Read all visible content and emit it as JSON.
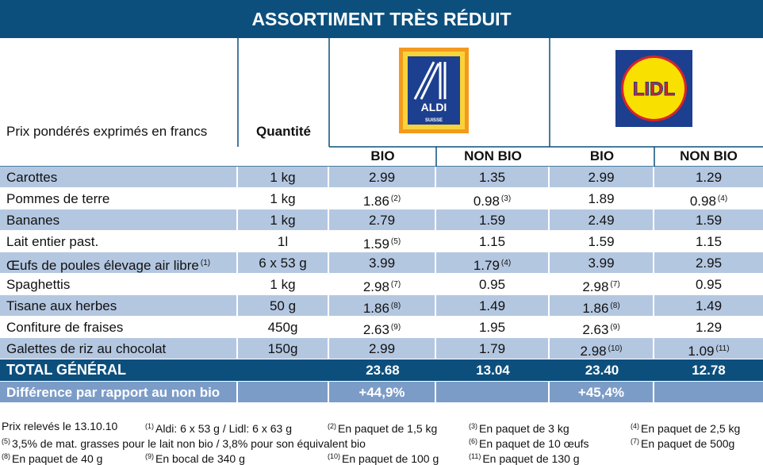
{
  "title": "ASSORTIMENT TRÈS RÉDUIT",
  "header": {
    "label": "Prix pondérés exprimés en francs",
    "quantity": "Quantité",
    "stores": [
      {
        "name": "ALDI",
        "sub": "SUISSE"
      },
      {
        "name": "LIDL"
      }
    ],
    "columns": [
      "BIO",
      "NON BIO",
      "BIO",
      "NON BIO"
    ]
  },
  "rows": [
    {
      "label": "Carottes",
      "quantity": "1 kg",
      "cells": [
        {
          "value": "2.99"
        },
        {
          "value": "1.35"
        },
        {
          "value": "2.99"
        },
        {
          "value": "1.29"
        }
      ]
    },
    {
      "label": "Pommes de terre",
      "quantity": "1 kg",
      "cells": [
        {
          "value": "1.86",
          "note": "(2)"
        },
        {
          "value": "0.98",
          "note": "(3)"
        },
        {
          "value": "1.89"
        },
        {
          "value": "0.98",
          "note": "(4)"
        }
      ]
    },
    {
      "label": "Bananes",
      "quantity": "1 kg",
      "cells": [
        {
          "value": "2.79"
        },
        {
          "value": "1.59"
        },
        {
          "value": "2.49"
        },
        {
          "value": "1.59"
        }
      ]
    },
    {
      "label": "Lait entier past.",
      "quantity": "1l",
      "cells": [
        {
          "value": "1.59",
          "note": "(5)"
        },
        {
          "value": "1.15"
        },
        {
          "value": "1.59"
        },
        {
          "value": "1.15"
        }
      ]
    },
    {
      "label": "Œufs de poules élevage air libre",
      "note": "(1)",
      "quantity": "6 x 53 g",
      "cells": [
        {
          "value": "3.99"
        },
        {
          "value": "1.79",
          "note": "(4)"
        },
        {
          "value": "3.99"
        },
        {
          "value": "2.95"
        }
      ]
    },
    {
      "label": "Spaghettis",
      "quantity": "1 kg",
      "cells": [
        {
          "value": "2.98",
          "note": "(7)"
        },
        {
          "value": "0.95"
        },
        {
          "value": "2.98",
          "note": "(7)"
        },
        {
          "value": "0.95"
        }
      ]
    },
    {
      "label": "Tisane aux herbes",
      "quantity": "50 g",
      "cells": [
        {
          "value": "1.86",
          "note": "(8)"
        },
        {
          "value": "1.49"
        },
        {
          "value": "1.86",
          "note": "(8)"
        },
        {
          "value": "1.49"
        }
      ]
    },
    {
      "label": "Confiture de fraises",
      "quantity": "450g",
      "cells": [
        {
          "value": "2.63",
          "note": "(9)"
        },
        {
          "value": "1.95"
        },
        {
          "value": "2.63",
          "note": "(9)"
        },
        {
          "value": "1.29"
        }
      ]
    },
    {
      "label": "Galettes de riz au chocolat",
      "quantity": "150g",
      "cells": [
        {
          "value": "2.99"
        },
        {
          "value": "1.79"
        },
        {
          "value": "2.98",
          "note": "(10)"
        },
        {
          "value": "1.09",
          "note": "(11)"
        }
      ]
    }
  ],
  "total": {
    "label": "TOTAL GÉNÉRAL",
    "cells": [
      "23.68",
      "13.04",
      "23.40",
      "12.78"
    ]
  },
  "difference": {
    "label": "Différence par rapport au non bio",
    "cells": [
      "+44,9%",
      "+45,4%"
    ]
  },
  "footnotes": [
    {
      "text": "Prix relevés le 13.10.10"
    },
    {
      "mark": "(1)",
      "text": "Aldi: 6 x 53 g / Lidl: 6 x 63 g"
    },
    {
      "mark": "(2)",
      "text": "En paquet de 1,5 kg"
    },
    {
      "mark": "(3)",
      "text": "En paquet de 3 kg"
    },
    {
      "mark": "(4)",
      "text": "En paquet de 2,5 kg"
    },
    {
      "mark": "(5)",
      "text": "3,5% de mat. grasses pour le lait non bio / 3,8% pour son équivalent bio"
    },
    {
      "mark": "(6)",
      "text": "En paquet de 10 œufs"
    },
    {
      "mark": "(7)",
      "text": "En paquet de 500g"
    },
    {
      "mark": "(8)",
      "text": "En paquet de 40 g"
    },
    {
      "mark": "(9)",
      "text": "En bocal de 340 g"
    },
    {
      "mark": "(10)",
      "text": "En paquet de 100 g"
    },
    {
      "mark": "(11)",
      "text": "En paquet de 130 g"
    }
  ]
}
